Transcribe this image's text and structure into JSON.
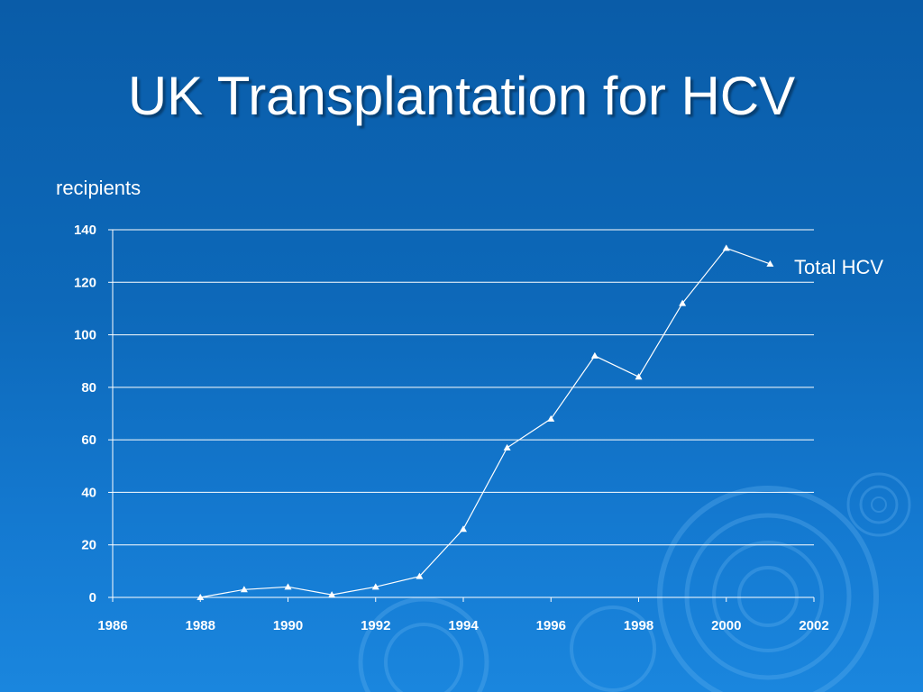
{
  "slide": {
    "title": "UK Transplantation for HCV"
  },
  "chart_data": {
    "type": "line",
    "title": "",
    "xlabel": "",
    "ylabel": "recipients",
    "xlim": [
      1986,
      2002
    ],
    "ylim": [
      0,
      140
    ],
    "x_ticks": [
      1986,
      1988,
      1990,
      1992,
      1994,
      1996,
      1998,
      2000,
      2002
    ],
    "y_ticks": [
      0,
      20,
      40,
      60,
      80,
      100,
      120,
      140
    ],
    "grid": "horizontal",
    "legend": "right-of-line-end",
    "marker": "triangle",
    "series": [
      {
        "name": "Total HCV",
        "color": "#ffffff",
        "x": [
          1988,
          1989,
          1990,
          1991,
          1992,
          1993,
          1994,
          1995,
          1996,
          1997,
          1998,
          1999,
          2000,
          2001
        ],
        "values": [
          0,
          3,
          4,
          1,
          4,
          8,
          26,
          57,
          68,
          92,
          84,
          112,
          133,
          127
        ]
      }
    ]
  }
}
